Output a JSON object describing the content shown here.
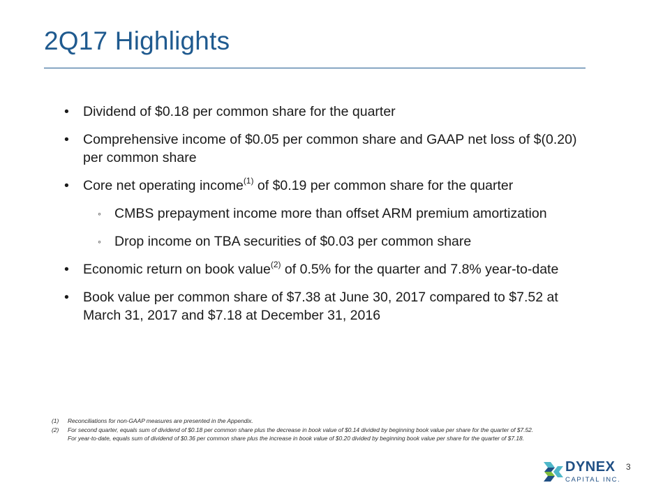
{
  "slide": {
    "title": "2Q17 Highlights",
    "page_number": "3"
  },
  "bullets": [
    {
      "text": "Dividend of $0.18 per common share for the quarter"
    },
    {
      "text": "Comprehensive income of $0.05 per common share and GAAP net loss of $(0.20) per common share"
    },
    {
      "pre": "Core net operating income",
      "sup": "(1)",
      "post": " of $0.19 per common share for the quarter"
    },
    {
      "text": "CMBS prepayment income more than offset ARM premium amortization"
    },
    {
      "text": "Drop income on TBA securities of $0.03 per common share"
    },
    {
      "pre": "Economic return on book value",
      "sup": "(2)",
      "post": " of 0.5% for the quarter and 7.8% year-to-date"
    },
    {
      "text": "Book value per common share of $7.38 at June 30, 2017 compared to $7.52 at March 31, 2017 and $7.18 at December 31, 2016"
    }
  ],
  "footnotes": [
    {
      "num": "(1)",
      "text": "Reconciliations for non-GAAP measures are presented in the Appendix."
    },
    {
      "num": "(2)",
      "text": "For second quarter, equals sum of dividend of $0.18 per common share plus the decrease in book value of $0.14 divided by beginning book value per share for the quarter of $7.52.  For year-to-date, equals sum of dividend of $0.36 per common share plus the increase in book value of $0.20 divided by beginning book value per share for the quarter of $7.18."
    }
  ],
  "logo": {
    "word": "DYNEX",
    "sub": "CAPITAL INC.",
    "colors": {
      "navy": "#1f4f84",
      "teal": "#4fb7c9",
      "green": "#7dbb3c"
    }
  },
  "colors": {
    "title": "#1f5a8f",
    "rule": "#1f5a8f"
  }
}
